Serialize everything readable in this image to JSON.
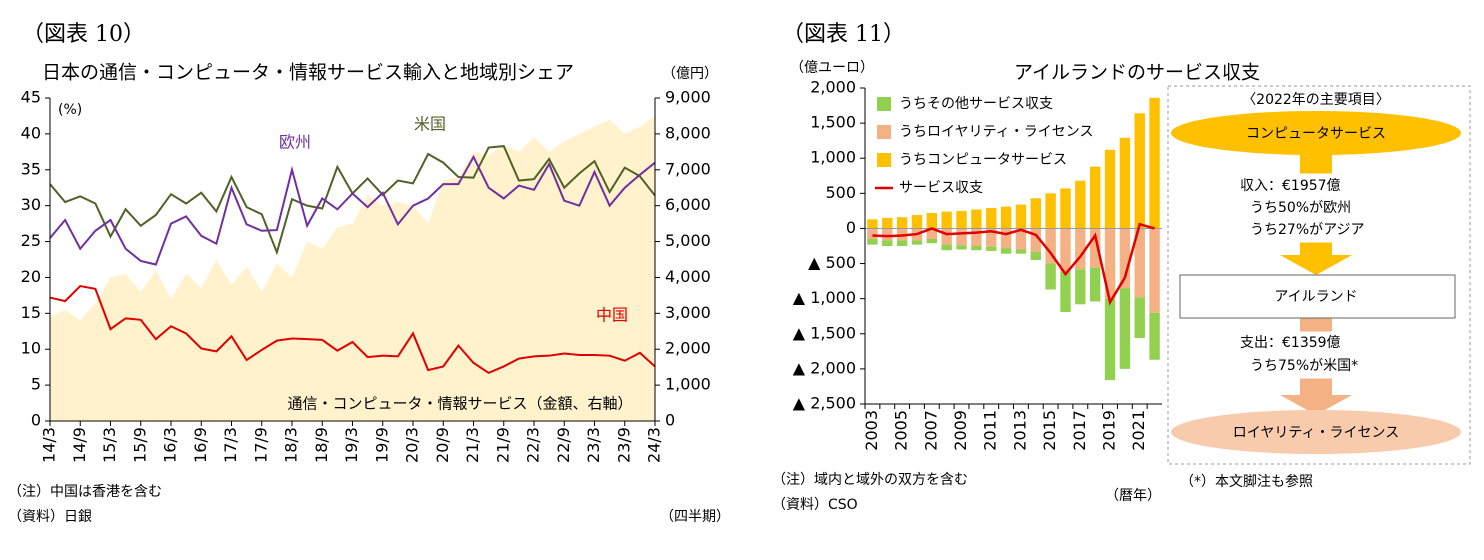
{
  "chart_data": [
    {
      "type": "line",
      "figure_label": "（図表 10）",
      "title": "日本の通信・コンピュータ・情報サービス輸入と地域別シェア",
      "y_unit": "(%)",
      "y2_unit": "（億円）",
      "x_label": "（四半期）",
      "notes": [
        "（注）中国は香港を含む",
        "（資料）日銀"
      ],
      "categories": [
        "14/3",
        null,
        "14/9",
        null,
        "15/3",
        null,
        "15/9",
        null,
        "16/3",
        null,
        "16/9",
        null,
        "17/3",
        null,
        "17/9",
        null,
        "18/3",
        null,
        "18/9",
        null,
        "19/3",
        null,
        "19/9",
        null,
        "20/3",
        null,
        "20/9",
        null,
        "21/3",
        null,
        "21/9",
        null,
        "22/3",
        null,
        "22/9",
        null,
        "23/3",
        null,
        "23/9",
        null,
        "24/3"
      ],
      "series": [
        {
          "name": "通信・コンピュータ・情報サービス（金額、右軸）",
          "color": "#fff2cc",
          "kind": "area",
          "axis": "y2",
          "values": [
            2900,
            3100,
            2800,
            3300,
            4000,
            4100,
            3600,
            4200,
            3400,
            4100,
            3700,
            4500,
            3800,
            4300,
            3600,
            4400,
            4000,
            5000,
            4800,
            5400,
            5500,
            6300,
            6000,
            6100,
            6000,
            5500,
            6700,
            6800,
            7500,
            7400,
            7700,
            7500,
            7900,
            7500,
            7800,
            8000,
            8200,
            8400,
            8000,
            8200,
            8500
          ]
        },
        {
          "name": "米国",
          "color": "#4f6228",
          "kind": "line",
          "values": [
            33.0,
            30.5,
            31.3,
            30.3,
            25.7,
            29.5,
            27.2,
            28.7,
            31.6,
            30.3,
            31.8,
            29.2,
            34.0,
            29.8,
            28.8,
            23.5,
            30.9,
            30.0,
            29.6,
            35.4,
            31.7,
            33.8,
            31.5,
            33.5,
            33.1,
            37.2,
            36.0,
            34.0,
            33.9,
            38.1,
            38.3,
            33.5,
            33.7,
            36.5,
            32.5,
            34.5,
            36.2,
            31.9,
            35.3,
            34.1,
            31.4
          ]
        },
        {
          "name": "欧州",
          "color": "#7030a0",
          "kind": "line",
          "values": [
            25.5,
            28.0,
            24.0,
            26.5,
            28.0,
            24.0,
            22.3,
            21.8,
            27.5,
            28.5,
            25.8,
            24.7,
            32.5,
            27.4,
            26.5,
            26.6,
            35.0,
            27.2,
            31.0,
            29.5,
            31.7,
            29.8,
            31.8,
            27.4,
            30.0,
            31.0,
            33.0,
            33.0,
            36.8,
            32.5,
            31.0,
            32.8,
            32.2,
            35.8,
            30.7,
            30.0,
            34.7,
            30.0,
            32.5,
            34.3,
            36.0
          ]
        },
        {
          "name": "中国",
          "color": "#e00000",
          "kind": "line",
          "values": [
            17.2,
            16.7,
            18.8,
            18.4,
            12.8,
            14.3,
            14.1,
            11.4,
            13.2,
            12.2,
            10.1,
            9.7,
            11.8,
            8.5,
            9.9,
            11.2,
            11.5,
            11.4,
            11.3,
            9.8,
            11.0,
            8.9,
            9.1,
            9.0,
            12.2,
            7.1,
            7.6,
            10.5,
            8.1,
            6.7,
            7.6,
            8.7,
            9.0,
            9.1,
            9.4,
            9.2,
            9.2,
            9.1,
            8.4,
            9.5,
            7.6
          ]
        }
      ],
      "ylim": [
        0,
        45
      ],
      "yticks": [
        0,
        5,
        10,
        15,
        20,
        25,
        30,
        35,
        40,
        45
      ],
      "y2lim": [
        0,
        9000
      ],
      "y2ticks": [
        0,
        {
          "value": 1000,
          "label": "1,000"
        },
        {
          "value": 2000,
          "label": "2,000"
        },
        {
          "value": 3000,
          "label": "3,000"
        },
        {
          "value": 4000,
          "label": "4,000"
        },
        {
          "value": 5000,
          "label": "5,000"
        },
        {
          "value": 6000,
          "label": "6,000"
        },
        {
          "value": 7000,
          "label": "7,000"
        },
        {
          "value": 8000,
          "label": "8,000"
        },
        {
          "value": 9000,
          "label": "9,000"
        }
      ],
      "grid": false
    },
    {
      "type": "bar",
      "figure_label": "（図表 11）",
      "title": "アイルランドのサービス収支",
      "y_unit": "（億ユーロ）",
      "x_label": "（暦年）",
      "notes": [
        "（注）域内と域外の双方を含む",
        "（資料）CSO"
      ],
      "categories": [
        "2003",
        null,
        "2005",
        null,
        "2007",
        null,
        "2009",
        null,
        "2011",
        null,
        "2013",
        null,
        "2015",
        null,
        "2017",
        null,
        "2019",
        null,
        "2021",
        null
      ],
      "series": [
        {
          "name": "うちその他サービス収支",
          "color": "#92d050",
          "kind": "bar",
          "values": [
            -80,
            -80,
            -80,
            -60,
            -60,
            -80,
            -60,
            -60,
            -60,
            -80,
            -60,
            -120,
            -370,
            -570,
            -500,
            -480,
            -1160,
            -1150,
            -580,
            -670
          ]
        },
        {
          "name": "うちロイヤリティ・ライセンス",
          "color": "#f4b183",
          "kind": "bar",
          "values": [
            -150,
            -170,
            -170,
            -170,
            -150,
            -230,
            -240,
            -250,
            -260,
            -280,
            -300,
            -330,
            -500,
            -620,
            -580,
            -560,
            -1000,
            -850,
            -980,
            -1200
          ]
        },
        {
          "name": "うちコンピュータサービス",
          "color": "#ffc000",
          "kind": "bar",
          "values": [
            130,
            150,
            160,
            190,
            220,
            240,
            250,
            270,
            290,
            310,
            340,
            430,
            500,
            570,
            680,
            880,
            1120,
            1290,
            1640,
            1860
          ]
        },
        {
          "name": "サービス収支",
          "color": "#e00000",
          "kind": "line",
          "values": [
            -100,
            -110,
            -100,
            -80,
            0,
            -80,
            -70,
            -60,
            -40,
            -80,
            -20,
            -90,
            -350,
            -650,
            -400,
            -100,
            -1050,
            -700,
            60,
            0
          ]
        }
      ],
      "stacked": true,
      "ylim": [
        -2500,
        2000
      ],
      "yticks": [
        {
          "value": 2000,
          "label": "2,000"
        },
        {
          "value": 1500,
          "label": "1,500"
        },
        {
          "value": 1000,
          "label": "1,000"
        },
        500,
        0,
        {
          "value": -500,
          "label": "▲ 500"
        },
        {
          "value": -1000,
          "label": "▲ 1,000"
        },
        {
          "value": -1500,
          "label": "▲ 1,500"
        },
        {
          "value": -2000,
          "label": "▲ 2,000"
        },
        {
          "value": -2500,
          "label": "▲ 2,500"
        }
      ],
      "legend": "upper left",
      "grid": false
    }
  ],
  "diagram": {
    "title": "〈2022年の主要項目〉",
    "source_node": "コンピュータサービス",
    "income": [
      "収入：€1957億",
      "うち50%が欧州",
      "うち27%がアジア"
    ],
    "center_node": "アイルランド",
    "expense": [
      "支出：€1359億",
      "うち75%が米国*"
    ],
    "target_node": "ロイヤリティ・ライセンス",
    "footnote": "（*）本文脚注も参照"
  }
}
